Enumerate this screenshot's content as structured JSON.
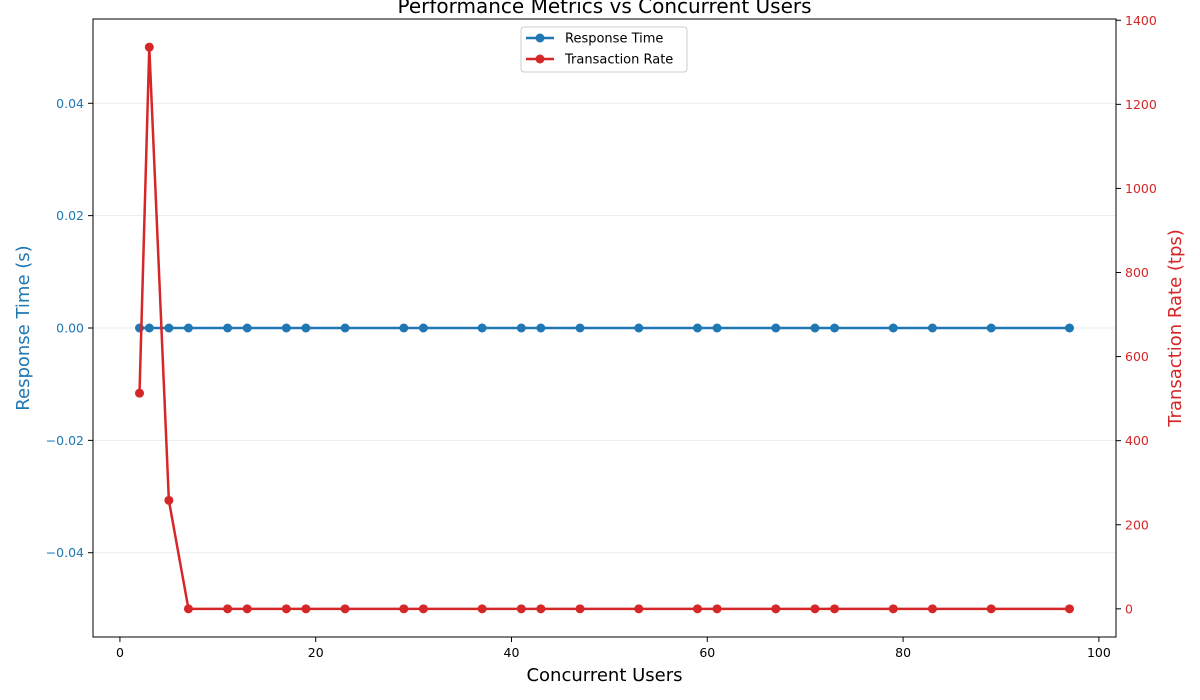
{
  "chart_data": {
    "type": "line",
    "title": "Performance Metrics vs Concurrent Users",
    "xlabel": "Concurrent Users",
    "x": [
      2,
      3,
      5,
      7,
      11,
      13,
      17,
      19,
      23,
      29,
      31,
      37,
      41,
      43,
      47,
      53,
      59,
      61,
      67,
      71,
      73,
      79,
      83,
      89,
      97
    ],
    "xlim": [
      -2.75,
      101.75
    ],
    "xticks": [
      0,
      20,
      40,
      60,
      80,
      100
    ],
    "xtick_labels": [
      "0",
      "20",
      "40",
      "60",
      "80",
      "100"
    ],
    "y_left": {
      "label": "Response Time (s)",
      "lim": [
        -0.055,
        0.055
      ],
      "ticks": [
        -0.04,
        -0.02,
        0.0,
        0.02,
        0.04
      ],
      "tick_labels": [
        "−0.04",
        "−0.02",
        "0.00",
        "0.02",
        "0.04"
      ],
      "color": "#1f77b4"
    },
    "y_right": {
      "label": "Transaction Rate (tps)",
      "lim": [
        -67,
        1403
      ],
      "ticks": [
        0,
        200,
        400,
        600,
        800,
        1000,
        1200,
        1400
      ],
      "tick_labels": [
        "0",
        "200",
        "400",
        "600",
        "800",
        "1000",
        "1200",
        "1400"
      ],
      "color": "#d62728"
    },
    "series": [
      {
        "name": "Response Time",
        "axis": "left",
        "color": "#1f77b4",
        "values": [
          0,
          0,
          0,
          0,
          0,
          0,
          0,
          0,
          0,
          0,
          0,
          0,
          0,
          0,
          0,
          0,
          0,
          0,
          0,
          0,
          0,
          0,
          0,
          0,
          0
        ]
      },
      {
        "name": "Transaction Rate",
        "axis": "right",
        "color": "#d62728",
        "values": [
          513,
          1336,
          258,
          0,
          0,
          0,
          0,
          0,
          0,
          0,
          0,
          0,
          0,
          0,
          0,
          0,
          0,
          0,
          0,
          0,
          0,
          0,
          0,
          0,
          0
        ]
      }
    ],
    "grid": true,
    "legend_position": "top-center"
  }
}
